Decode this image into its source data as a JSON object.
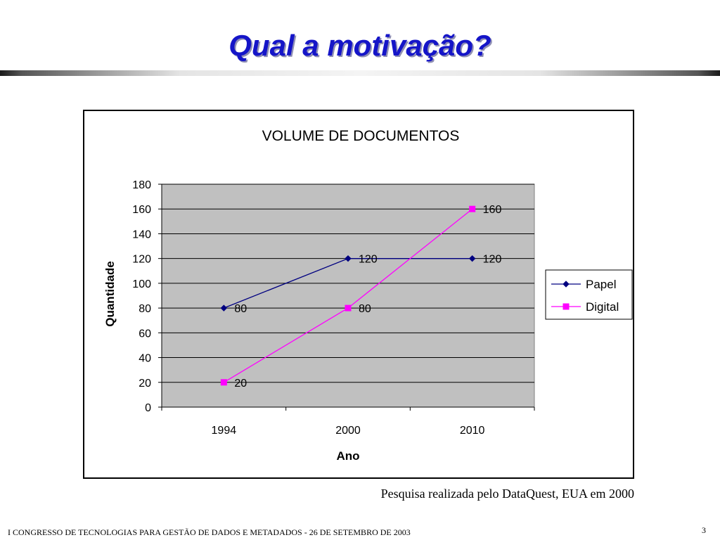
{
  "slide": {
    "title": "Qual a motivação?",
    "source_note": "Pesquisa realizada pelo DataQuest, EUA em 2000",
    "footer": "I CONGRESSO DE TECNOLOGIAS PARA GESTÃO DE DADOS E METADADOS - 26 DE SETEMBRO DE 2003",
    "page_number": "3"
  },
  "chart_data": {
    "type": "line",
    "title": "VOLUME DE DOCUMENTOS",
    "xlabel": "Ano",
    "ylabel": "Quantidade",
    "categories": [
      "1994",
      "2000",
      "2010"
    ],
    "ylim": [
      0,
      180
    ],
    "ytick_step": 20,
    "grid": true,
    "legend_position": "right",
    "plot_background": "#c0c0c0",
    "series": [
      {
        "name": "Papel",
        "values": [
          80,
          120,
          120
        ],
        "color": "#000080",
        "marker": "diamond",
        "data_labels": [
          "80",
          "120",
          "120"
        ]
      },
      {
        "name": "Digital",
        "values": [
          20,
          80,
          160
        ],
        "color": "#ff00ff",
        "marker": "square",
        "data_labels": [
          "20",
          "80",
          "160"
        ]
      }
    ]
  }
}
